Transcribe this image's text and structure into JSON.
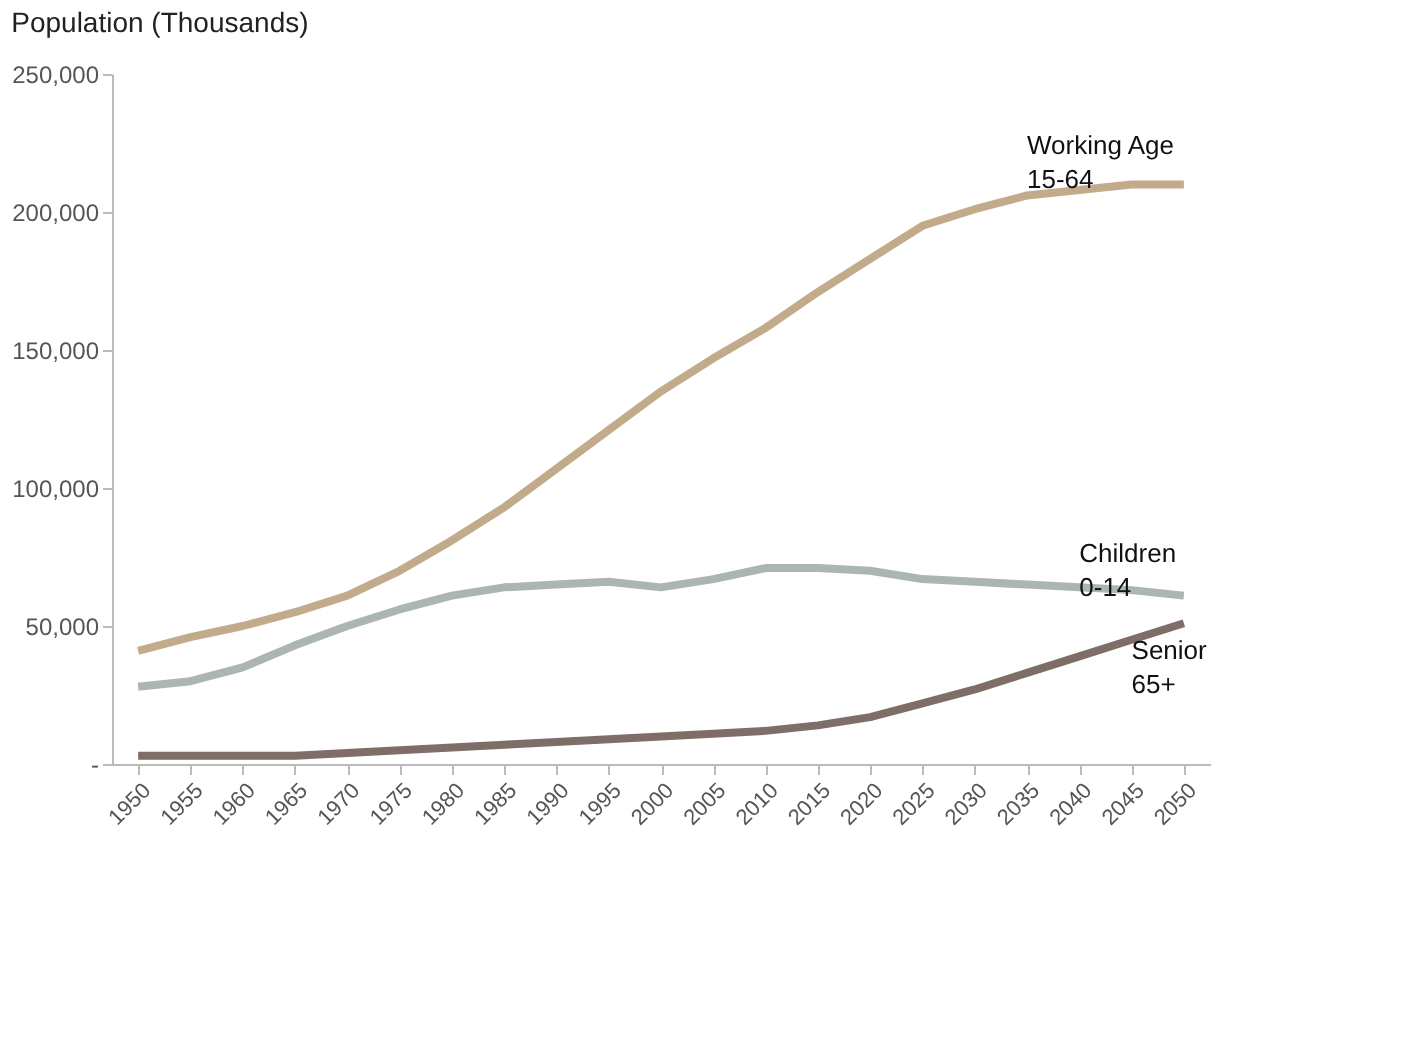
{
  "chart_data": {
    "type": "line",
    "title": "Population (Thousands)",
    "categories": [
      "1950",
      "1955",
      "1960",
      "1965",
      "1970",
      "1975",
      "1980",
      "1985",
      "1990",
      "1995",
      "2000",
      "2005",
      "2010",
      "2015",
      "2020",
      "2025",
      "2030",
      "2035",
      "2040",
      "2045",
      "2050"
    ],
    "series": [
      {
        "name": "Working Age\n15-64",
        "color": "#c2ab8b",
        "values": [
          41000,
          46000,
          50000,
          55000,
          61000,
          70000,
          81000,
          93000,
          107000,
          121000,
          135000,
          147000,
          158000,
          171000,
          183000,
          195000,
          201000,
          206000,
          208000,
          210000,
          210000
        ]
      },
      {
        "name": "Children\n0-14",
        "color": "#aab6af",
        "values": [
          28000,
          30000,
          35000,
          43000,
          50000,
          56000,
          61000,
          64000,
          65000,
          66000,
          64000,
          67000,
          71000,
          71000,
          70000,
          67000,
          66000,
          65000,
          64000,
          63000,
          61000
        ]
      },
      {
        "name": "Senior\n65+",
        "color": "#7f6d68",
        "values": [
          3000,
          3000,
          3000,
          3000,
          4000,
          5000,
          6000,
          7000,
          8000,
          9000,
          10000,
          11000,
          12000,
          14000,
          17000,
          22000,
          27000,
          33000,
          39000,
          45000,
          51000
        ]
      }
    ],
    "ylim": [
      0,
      250000
    ],
    "yticks": [
      {
        "value": 0,
        "label": "-"
      },
      {
        "value": 50000,
        "label": "50,000"
      },
      {
        "value": 100000,
        "label": "100,000"
      },
      {
        "value": 150000,
        "label": "150,000"
      },
      {
        "value": 200000,
        "label": "200,000"
      },
      {
        "value": 250000,
        "label": "250,000"
      }
    ],
    "grid": false,
    "legend": false,
    "marker": "none",
    "line_style": "solid"
  }
}
